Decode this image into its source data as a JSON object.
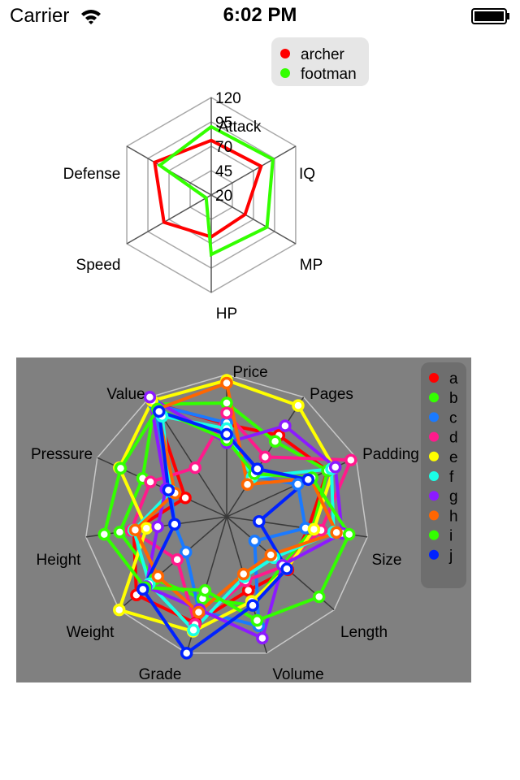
{
  "status_bar": {
    "carrier": "Carrier",
    "time": "6:02 PM"
  },
  "colors": {
    "chart2_background": "#808080",
    "legend_background": "#e6e6e6",
    "legend2_background": "#6e6e6e"
  },
  "chart_data": [
    {
      "type": "radar",
      "axes": [
        "Attack",
        "IQ",
        "MP",
        "HP",
        "Speed",
        "Defense"
      ],
      "tick_labels": [
        "20",
        "45",
        "70",
        "95",
        "120"
      ],
      "range": [
        20,
        120
      ],
      "grid": true,
      "legend_position": "top-right",
      "series": [
        {
          "name": "archer",
          "color": "#ff0000",
          "values": [
            76,
            79,
            60,
            63,
            76,
            87
          ]
        },
        {
          "name": "footman",
          "color": "#33ff00",
          "values": [
            90,
            93,
            86,
            81,
            26,
            81
          ]
        }
      ]
    },
    {
      "type": "radar",
      "axes": [
        "Price",
        "Pages",
        "Padding",
        "Size",
        "Length",
        "Volume",
        "Grade",
        "Weight",
        "Height",
        "Pressure",
        "Value"
      ],
      "range": [
        0,
        100
      ],
      "grid": true,
      "legend_position": "top-right",
      "series": [
        {
          "name": "a",
          "color": "#ff0000",
          "values": [
            65,
            68,
            78,
            58,
            57,
            54,
            78,
            84,
            66,
            32,
            95
          ]
        },
        {
          "name": "b",
          "color": "#33ff00",
          "values": [
            80,
            63,
            78,
            61,
            52,
            65,
            60,
            67,
            76,
            65,
            94
          ]
        },
        {
          "name": "c",
          "color": "#1a7aff",
          "values": [
            66,
            34,
            55,
            56,
            26,
            80,
            69,
            38,
            37,
            43,
            94
          ]
        },
        {
          "name": "d",
          "color": "#ff1a8c",
          "values": [
            73,
            50,
            96,
            67,
            53,
            47,
            79,
            46,
            68,
            59,
            41
          ]
        },
        {
          "name": "e",
          "color": "#ffff00",
          "values": [
            96,
            93,
            83,
            62,
            56,
            62,
            84,
            100,
            57,
            83,
            97
          ]
        },
        {
          "name": "f",
          "color": "#1affe6",
          "values": [
            62,
            33,
            81,
            76,
            44,
            44,
            83,
            72,
            66,
            43,
            84
          ]
        },
        {
          "name": "g",
          "color": "#8c1aff",
          "values": [
            52,
            76,
            84,
            82,
            52,
            89,
            68,
            75,
            49,
            47,
            100
          ]
        },
        {
          "name": "h",
          "color": "#ff6600",
          "values": [
            94,
            27,
            65,
            78,
            41,
            42,
            70,
            64,
            65,
            40,
            90
          ]
        },
        {
          "name": "i",
          "color": "#33ff00",
          "values": [
            54,
            36,
            66,
            87,
            86,
            76,
            54,
            76,
            87,
            82,
            90
          ]
        },
        {
          "name": "j",
          "color": "#0022ff",
          "values": [
            58,
            40,
            63,
            23,
            56,
            65,
            100,
            78,
            37,
            45,
            88
          ]
        }
      ]
    }
  ]
}
